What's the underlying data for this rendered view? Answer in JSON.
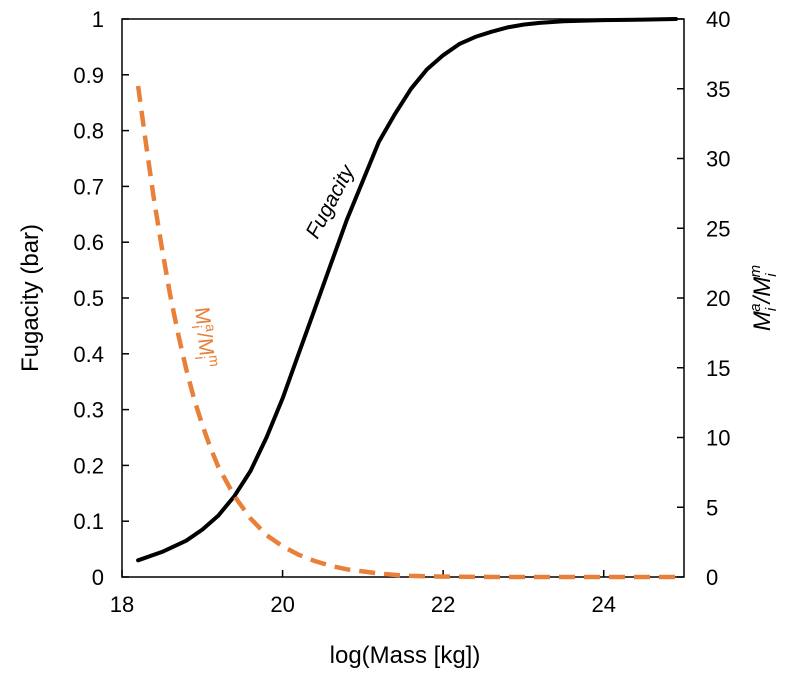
{
  "chart_data": {
    "type": "line",
    "title": "",
    "xlabel": "log(Mass [kg])",
    "ylabel": "Fugacity (bar)",
    "y2label": "Mi^a/Mi^m",
    "xlim": [
      18,
      25
    ],
    "ylim": [
      0,
      1
    ],
    "y2lim": [
      0,
      40
    ],
    "x_ticks": [
      18,
      20,
      22,
      24
    ],
    "y_ticks": [
      0,
      0.1,
      0.2,
      0.3,
      0.4,
      0.5,
      0.6,
      0.7,
      0.8,
      0.9,
      1
    ],
    "y2_ticks": [
      0,
      5,
      10,
      15,
      20,
      25,
      30,
      35,
      40
    ],
    "grid": false,
    "legend": "none",
    "series": [
      {
        "name": "Fugacity",
        "axis": "left",
        "style": "solid",
        "color": "#000000",
        "x": [
          18.2,
          18.5,
          18.8,
          19.0,
          19.2,
          19.4,
          19.6,
          19.8,
          20.0,
          20.2,
          20.4,
          20.6,
          20.8,
          21.0,
          21.2,
          21.4,
          21.6,
          21.8,
          22.0,
          22.2,
          22.4,
          22.6,
          22.8,
          23.0,
          23.2,
          23.5,
          24.0,
          24.5,
          24.9
        ],
        "values": [
          0.03,
          0.045,
          0.065,
          0.085,
          0.11,
          0.145,
          0.19,
          0.25,
          0.32,
          0.4,
          0.48,
          0.56,
          0.64,
          0.71,
          0.78,
          0.83,
          0.875,
          0.91,
          0.935,
          0.955,
          0.968,
          0.977,
          0.985,
          0.99,
          0.993,
          0.996,
          0.998,
          0.999,
          1.0
        ]
      },
      {
        "name": "Mi^a/Mi^m",
        "axis": "right",
        "style": "dashed",
        "color": "#E8803A",
        "x": [
          18.2,
          18.3,
          18.4,
          18.5,
          18.6,
          18.7,
          18.8,
          18.9,
          19.0,
          19.1,
          19.2,
          19.4,
          19.6,
          19.8,
          20.0,
          20.2,
          20.4,
          20.6,
          20.8,
          21.0,
          21.2,
          21.4,
          21.6,
          22.0,
          22.5,
          23.0,
          24.0,
          24.9
        ],
        "values": [
          35.2,
          31.0,
          27.0,
          23.5,
          20.2,
          17.4,
          14.9,
          12.7,
          10.9,
          9.3,
          7.9,
          5.8,
          4.2,
          3.0,
          2.2,
          1.6,
          1.15,
          0.8,
          0.55,
          0.4,
          0.25,
          0.15,
          0.08,
          0.03,
          0.01,
          0.0,
          0.0,
          0.0
        ]
      }
    ],
    "annotations": [
      "Fugacity",
      "Mi^a/Mi^m"
    ]
  },
  "colors": {
    "fugacity": "#000000",
    "ratio": "#E8803A"
  }
}
